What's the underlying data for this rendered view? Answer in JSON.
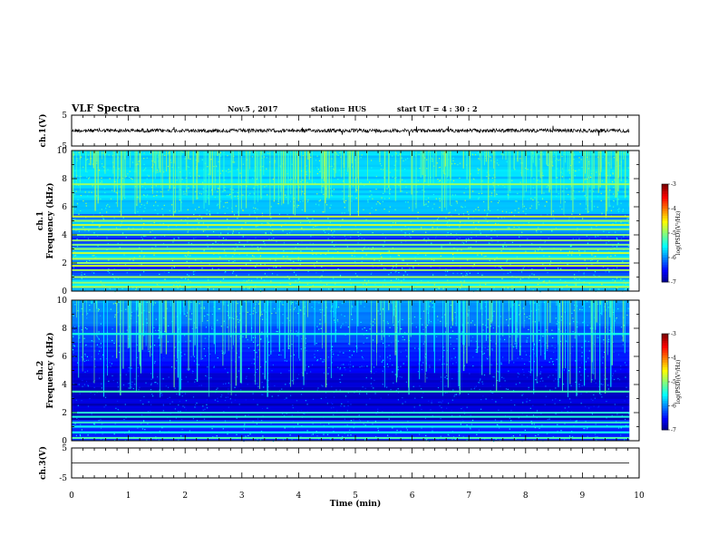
{
  "header": {
    "title": "VLF Spectra",
    "date": "Nov.5  , 2017",
    "station": "station= HUS",
    "start": "start  UT  =   4  : 30 : 2"
  },
  "chart_data": [
    {
      "id": "ch1-waveform",
      "type": "line",
      "ylabel": "ch.1(V)",
      "ylim": [
        -5,
        5
      ],
      "yticks": [
        "5",
        "-5"
      ],
      "xlim": [
        0,
        10
      ],
      "baseline": 0,
      "data_extent": [
        0,
        9.83
      ]
    },
    {
      "id": "ch1-spectrogram",
      "type": "heatmap",
      "ylabel_top": "ch.1",
      "ylabel": "Frequency (kHz)",
      "ylim": [
        0,
        10
      ],
      "yticks": [
        "0",
        "2",
        "4",
        "6",
        "8",
        "10"
      ],
      "xlim": [
        0,
        10
      ],
      "data_extent": [
        0,
        9.83
      ],
      "bands_khz": [
        0.3,
        0.6,
        1.0,
        1.5,
        1.8,
        2.0,
        2.3,
        2.7,
        3.0,
        3.3,
        3.6,
        4.0,
        4.4,
        4.7,
        5.0,
        5.3,
        7.6
      ],
      "colorbar": {
        "label": "log(PSD)(V²/Hz)",
        "ticks": [
          "-3",
          "-4",
          "-5",
          "-6",
          "-7"
        ],
        "range": [
          -7,
          -3
        ]
      }
    },
    {
      "id": "ch2-spectrogram",
      "type": "heatmap",
      "ylabel_top": "ch.2",
      "ylabel": "Frequency (kHz)",
      "ylim": [
        0,
        10
      ],
      "yticks": [
        "0",
        "2",
        "4",
        "6",
        "8",
        "10"
      ],
      "xlim": [
        0,
        10
      ],
      "data_extent": [
        0,
        9.83
      ],
      "bands_khz": [
        0.2,
        0.6,
        1.0,
        1.3,
        1.7,
        2.0,
        3.5,
        7.6
      ],
      "colorbar": {
        "label": "log(PSD)(V²/Hz)",
        "ticks": [
          "-3",
          "-4",
          "-5",
          "-6",
          "-7"
        ],
        "range": [
          -7,
          -3
        ]
      }
    },
    {
      "id": "ch3-waveform",
      "type": "line",
      "ylabel": "ch.3(V)",
      "ylim": [
        -5,
        5
      ],
      "yticks": [
        "5",
        "-5"
      ],
      "xlim": [
        0,
        10
      ],
      "baseline": 0,
      "data_extent": [
        0,
        9.83
      ]
    }
  ],
  "xaxis": {
    "label": "Time  (min)",
    "ticks": [
      "0",
      "1",
      "2",
      "3",
      "4",
      "5",
      "6",
      "7",
      "8",
      "9",
      "10"
    ]
  },
  "colors": {
    "trace": "#000000",
    "spectrogram_low": "#000010",
    "spectrogram_high": "#ff0000"
  }
}
